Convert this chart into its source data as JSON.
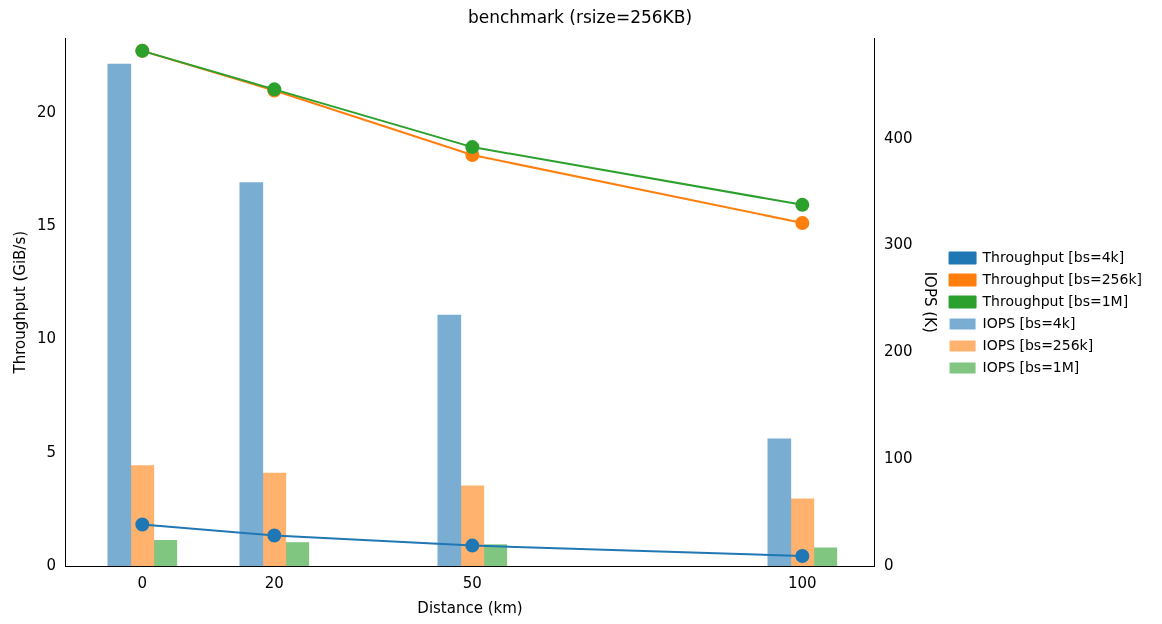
{
  "chart_data": {
    "type": "line",
    "title": "benchmark (rsize=256KB)",
    "xlabel": "Distance (km)",
    "ylabel": "Throughput (GiB/s)",
    "y2label": "IOPS (K)",
    "x": [
      0,
      20,
      50,
      100
    ],
    "xlim": [
      -11.7,
      111
    ],
    "xticks": [
      0,
      20,
      50,
      100
    ],
    "ylim": [
      0,
      23.3
    ],
    "yticks": [
      0,
      5,
      10,
      15,
      20
    ],
    "y2lim": [
      0,
      494
    ],
    "y2ticks": [
      0,
      100,
      200,
      300,
      400
    ],
    "grid": false,
    "legend": "right",
    "marker": "circle",
    "line_style": "solid",
    "series": [
      {
        "name": "Throughput [bs=4k]",
        "axis": "y",
        "color": "#1f77b4",
        "values": [
          1.83,
          1.35,
          0.9,
          0.44
        ]
      },
      {
        "name": "Throughput [bs=256k]",
        "axis": "y",
        "color": "#ff7f0e",
        "values": [
          22.75,
          21.0,
          18.15,
          15.15
        ]
      },
      {
        "name": "Throughput [bs=1M]",
        "axis": "y",
        "color": "#2ca02c",
        "values": [
          22.75,
          21.05,
          18.5,
          15.95
        ]
      },
      {
        "name": "IOPS [bs=4k]",
        "type": "bar",
        "axis": "y2",
        "color": "#79add2",
        "values": [
          470,
          359,
          235,
          119
        ]
      },
      {
        "name": "IOPS [bs=256k]",
        "type": "bar",
        "axis": "y2",
        "color": "#ffb26e",
        "values": [
          94,
          87,
          75,
          63
        ]
      },
      {
        "name": "IOPS [bs=1M]",
        "type": "bar",
        "axis": "y2",
        "color": "#80c680",
        "values": [
          24,
          22,
          20,
          17
        ]
      }
    ]
  }
}
